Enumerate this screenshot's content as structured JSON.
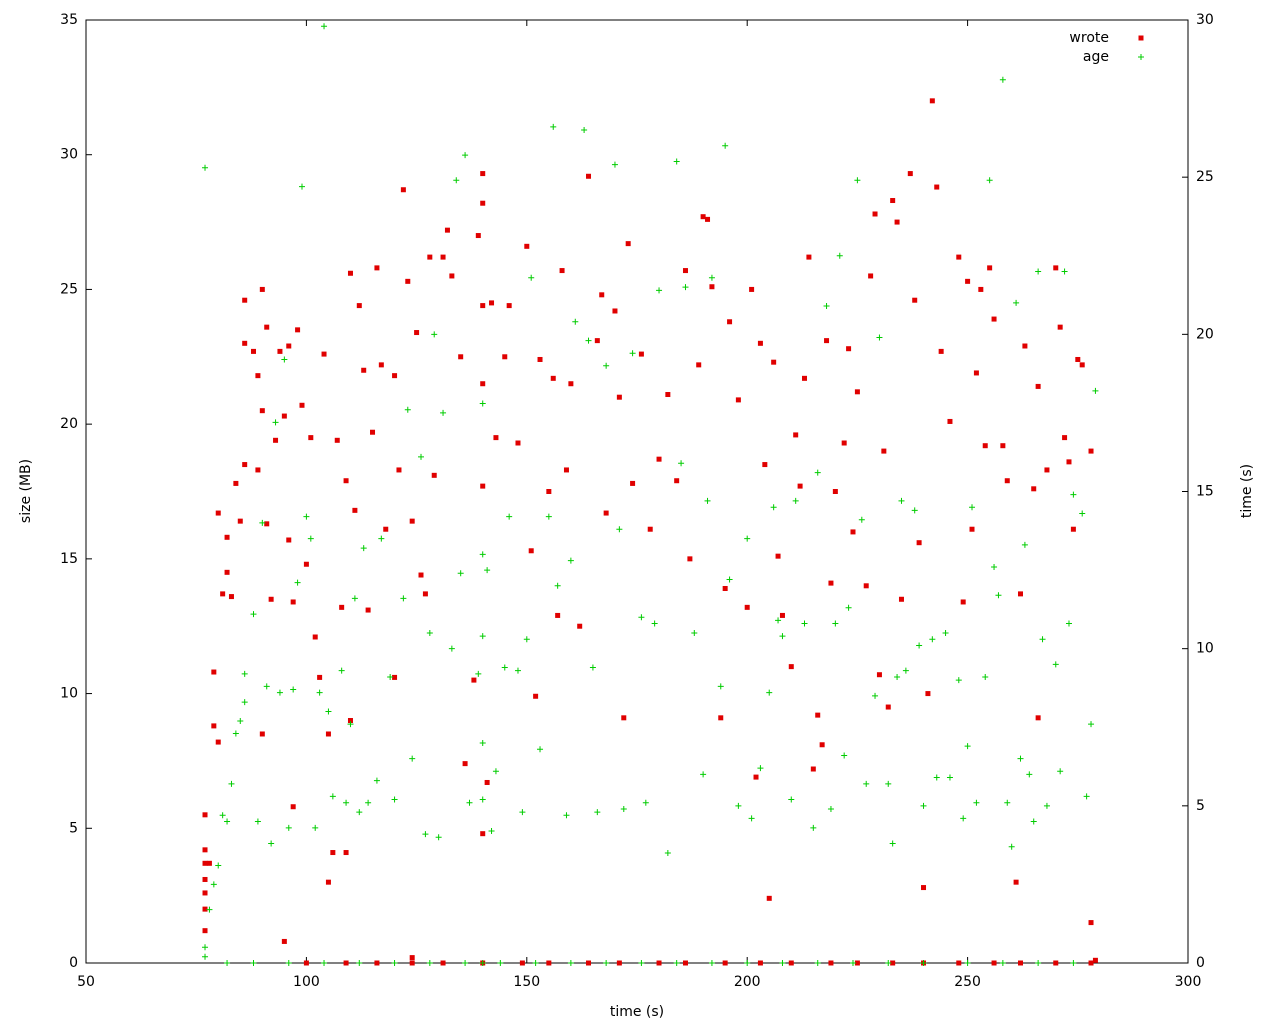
{
  "chart_data": {
    "type": "scatter",
    "xlabel": "time (s)",
    "ylabel": "size (MB)",
    "y2label": "time (s)",
    "xlim": [
      50,
      300
    ],
    "xticks": [
      50,
      100,
      150,
      200,
      250,
      300
    ],
    "ylim": [
      0,
      35
    ],
    "yticks": [
      0,
      5,
      10,
      15,
      20,
      25,
      30,
      35
    ],
    "y2lim": [
      0,
      30
    ],
    "y2ticks": [
      0,
      5,
      10,
      15,
      20,
      25,
      30
    ],
    "grid": false,
    "legend": "top-right",
    "series": [
      {
        "name": "wrote",
        "color": "#e00000",
        "marker": "square",
        "axis": "y",
        "x": [
          77,
          77,
          77,
          77,
          77,
          77,
          77,
          78,
          79,
          79,
          80,
          80,
          81,
          82,
          82,
          83,
          84,
          85,
          86,
          86,
          86,
          88,
          89,
          89,
          90,
          90,
          90,
          91,
          91,
          92,
          93,
          94,
          95,
          96,
          96,
          97,
          97,
          98,
          99,
          100,
          101,
          102,
          103,
          104,
          105,
          105,
          106,
          107,
          108,
          109,
          109,
          110,
          110,
          111,
          112,
          113,
          114,
          115,
          116,
          117,
          118,
          120,
          120,
          121,
          122,
          123,
          124,
          125,
          126,
          127,
          128,
          129,
          131,
          132,
          133,
          135,
          136,
          138,
          139,
          140,
          140,
          140,
          140,
          140,
          140,
          141,
          142,
          143,
          145,
          146,
          148,
          150,
          151,
          152,
          153,
          155,
          156,
          157,
          158,
          159,
          160,
          162,
          164,
          166,
          167,
          168,
          170,
          171,
          172,
          173,
          174,
          176,
          178,
          180,
          182,
          184,
          186,
          187,
          189,
          190,
          191,
          192,
          194,
          195,
          196,
          198,
          200,
          201,
          202,
          203,
          204,
          205,
          206,
          207,
          208,
          210,
          211,
          212,
          213,
          214,
          215,
          216,
          217,
          218,
          219,
          220,
          222,
          223,
          224,
          225,
          227,
          228,
          229,
          230,
          231,
          232,
          233,
          234,
          235,
          237,
          238,
          239,
          240,
          241,
          242,
          243,
          244,
          246,
          248,
          249,
          250,
          251,
          252,
          253,
          254,
          255,
          256,
          258,
          259,
          261,
          262,
          263,
          265,
          266,
          266,
          268,
          270,
          271,
          272,
          273,
          274,
          275,
          276,
          278,
          278,
          100,
          109,
          116,
          124,
          131,
          140,
          149,
          155,
          164,
          171,
          180,
          186,
          195,
          203,
          210,
          219,
          225,
          233,
          240,
          248,
          256,
          262,
          270,
          278,
          95,
          124,
          279
        ],
        "values": [
          5.5,
          4.2,
          3.7,
          3.1,
          2.6,
          2.0,
          1.2,
          3.7,
          8.8,
          10.8,
          8.2,
          16.7,
          13.7,
          15.8,
          14.5,
          13.6,
          17.8,
          16.4,
          23.0,
          24.6,
          18.5,
          22.7,
          21.8,
          18.3,
          25.0,
          20.5,
          8.5,
          23.6,
          16.3,
          13.5,
          19.4,
          22.7,
          20.3,
          22.9,
          15.7,
          5.8,
          13.4,
          23.5,
          20.7,
          14.8,
          19.5,
          12.1,
          10.6,
          22.6,
          8.5,
          3.0,
          4.1,
          19.4,
          13.2,
          4.1,
          17.9,
          25.6,
          9.0,
          16.8,
          24.4,
          22.0,
          13.1,
          19.7,
          25.8,
          22.2,
          16.1,
          21.8,
          10.6,
          18.3,
          28.7,
          25.3,
          16.4,
          23.4,
          14.4,
          13.7,
          26.2,
          18.1,
          26.2,
          27.2,
          25.5,
          22.5,
          7.4,
          10.5,
          27.0,
          29.3,
          28.2,
          24.4,
          21.5,
          17.7,
          4.8,
          6.7,
          24.5,
          19.5,
          22.5,
          24.4,
          19.3,
          26.6,
          15.3,
          9.9,
          22.4,
          17.5,
          21.7,
          12.9,
          25.7,
          18.3,
          21.5,
          12.5,
          29.2,
          23.1,
          24.8,
          16.7,
          24.2,
          21.0,
          9.1,
          26.7,
          17.8,
          22.6,
          16.1,
          18.7,
          21.1,
          17.9,
          25.7,
          15.0,
          22.2,
          27.7,
          27.6,
          25.1,
          9.1,
          13.9,
          23.8,
          20.9,
          13.2,
          25.0,
          6.9,
          23.0,
          18.5,
          2.4,
          22.3,
          15.1,
          12.9,
          11.0,
          19.6,
          17.7,
          21.7,
          26.2,
          7.2,
          9.2,
          8.1,
          23.1,
          14.1,
          17.5,
          19.3,
          22.8,
          16.0,
          21.2,
          14.0,
          25.5,
          27.8,
          10.7,
          19.0,
          9.5,
          28.3,
          27.5,
          13.5,
          29.3,
          24.6,
          15.6,
          2.8,
          10.0,
          32.0,
          28.8,
          22.7,
          20.1,
          26.2,
          13.4,
          25.3,
          16.1,
          21.9,
          25.0,
          19.2,
          25.8,
          23.9,
          19.2,
          17.9,
          3.0,
          13.7,
          22.9,
          17.6,
          9.1,
          21.4,
          18.3,
          25.8,
          23.6,
          19.5,
          18.6,
          16.1,
          22.4,
          22.2,
          1.5,
          19.0,
          0,
          0,
          0,
          0,
          0,
          0,
          0,
          0,
          0,
          0,
          0,
          0,
          0,
          0,
          0,
          0,
          0,
          0,
          0,
          0,
          0,
          0,
          0,
          0,
          0.8,
          0.2,
          0.1
        ]
      },
      {
        "name": "age",
        "color": "#00cc00",
        "marker": "plus",
        "axis": "y2",
        "x": [
          77,
          77,
          77,
          78,
          79,
          80,
          81,
          82,
          83,
          84,
          85,
          86,
          86,
          88,
          89,
          90,
          91,
          92,
          93,
          94,
          95,
          96,
          97,
          98,
          99,
          100,
          101,
          102,
          103,
          104,
          105,
          106,
          108,
          109,
          110,
          111,
          112,
          113,
          114,
          116,
          117,
          119,
          120,
          122,
          123,
          124,
          126,
          127,
          128,
          129,
          130,
          131,
          133,
          134,
          135,
          136,
          137,
          139,
          140,
          140,
          140,
          140,
          140,
          141,
          142,
          143,
          145,
          146,
          148,
          149,
          150,
          151,
          153,
          155,
          156,
          157,
          159,
          160,
          161,
          163,
          164,
          165,
          166,
          168,
          170,
          171,
          172,
          174,
          176,
          177,
          179,
          180,
          182,
          184,
          185,
          186,
          188,
          190,
          191,
          192,
          194,
          195,
          196,
          198,
          200,
          201,
          203,
          205,
          206,
          207,
          208,
          210,
          211,
          213,
          215,
          216,
          218,
          219,
          220,
          221,
          222,
          223,
          225,
          226,
          227,
          229,
          230,
          232,
          233,
          234,
          235,
          236,
          238,
          239,
          240,
          242,
          243,
          245,
          246,
          248,
          249,
          250,
          251,
          252,
          254,
          255,
          256,
          257,
          258,
          259,
          260,
          261,
          262,
          263,
          264,
          265,
          266,
          267,
          268,
          270,
          271,
          272,
          273,
          274,
          276,
          277,
          278,
          279,
          82,
          88,
          96,
          104,
          112,
          120,
          128,
          136,
          140,
          144,
          152,
          160,
          168,
          176,
          184,
          192,
          200,
          208,
          216,
          224,
          232,
          240,
          250,
          258,
          266,
          274
        ],
        "values": [
          25.3,
          0.5,
          0.2,
          1.7,
          2.5,
          3.1,
          4.7,
          4.5,
          5.7,
          7.3,
          7.7,
          8.3,
          9.2,
          11.1,
          4.5,
          14.0,
          8.8,
          3.8,
          17.2,
          8.6,
          19.2,
          4.3,
          8.7,
          12.1,
          24.7,
          14.2,
          13.5,
          4.3,
          8.6,
          29.8,
          8.0,
          5.3,
          9.3,
          5.1,
          7.6,
          11.6,
          4.8,
          13.2,
          5.1,
          5.8,
          13.5,
          9.1,
          5.2,
          11.6,
          17.6,
          6.5,
          16.1,
          4.1,
          10.5,
          20.0,
          4.0,
          17.5,
          10.0,
          24.9,
          12.4,
          25.7,
          5.1,
          9.2,
          17.8,
          13.0,
          10.4,
          7.0,
          5.2,
          12.5,
          4.2,
          6.1,
          9.4,
          14.2,
          9.3,
          4.8,
          10.3,
          21.8,
          6.8,
          14.2,
          26.6,
          12.0,
          4.7,
          12.8,
          20.4,
          26.5,
          19.8,
          9.4,
          4.8,
          19.0,
          25.4,
          13.8,
          4.9,
          19.4,
          11.0,
          5.1,
          10.8,
          21.4,
          3.5,
          25.5,
          15.9,
          21.5,
          10.5,
          6.0,
          14.7,
          21.8,
          8.8,
          26.0,
          12.2,
          5.0,
          13.5,
          4.6,
          6.2,
          8.6,
          14.5,
          10.9,
          10.4,
          5.2,
          14.7,
          10.8,
          4.3,
          15.6,
          20.9,
          4.9,
          10.8,
          22.5,
          6.6,
          11.3,
          24.9,
          14.1,
          5.7,
          8.5,
          19.9,
          5.7,
          3.8,
          9.1,
          14.7,
          9.3,
          14.4,
          10.1,
          5.0,
          10.3,
          5.9,
          10.5,
          5.9,
          9.0,
          4.6,
          6.9,
          14.5,
          5.1,
          9.1,
          24.9,
          12.6,
          11.7,
          28.1,
          5.1,
          3.7,
          21.0,
          6.5,
          13.3,
          6.0,
          4.5,
          22.0,
          10.3,
          5.0,
          9.5,
          6.1,
          22.0,
          10.8,
          14.9,
          14.3,
          5.3,
          7.6,
          18.2,
          0,
          0,
          0,
          0,
          0,
          0,
          0,
          0,
          0,
          0,
          0,
          0,
          0,
          0,
          0,
          0,
          0,
          0,
          0,
          0,
          0,
          0,
          0,
          0,
          0,
          0
        ]
      }
    ]
  }
}
